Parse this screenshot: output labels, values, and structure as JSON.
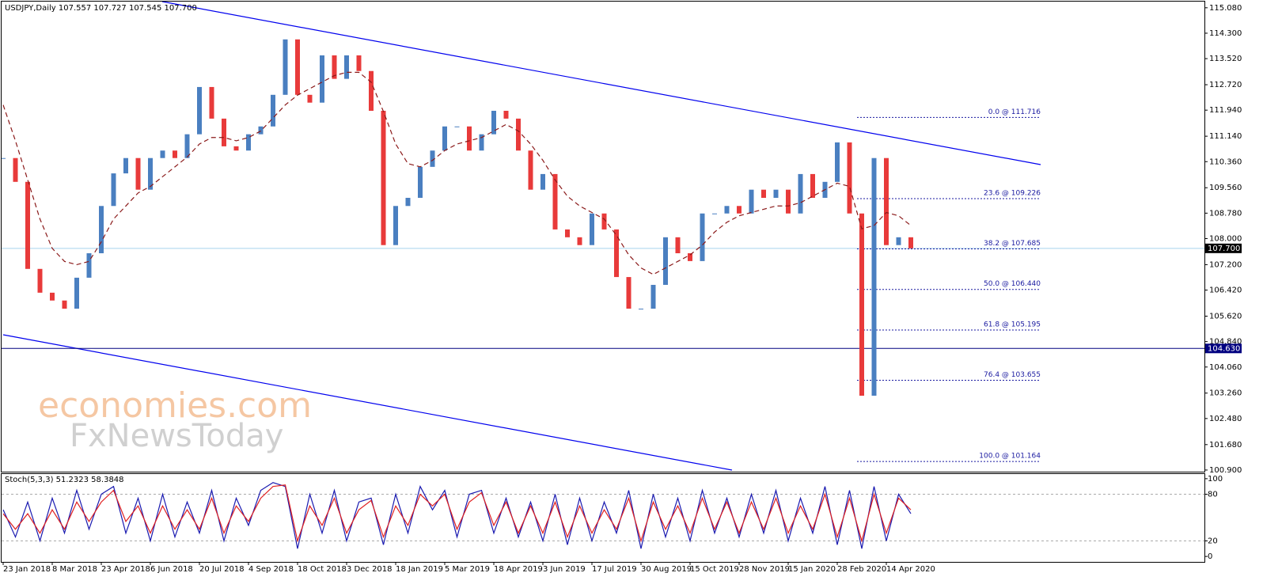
{
  "chart_data": [
    {
      "type": "line",
      "title": "USDJPY,Daily  107.557 107.727 107.545 107.700",
      "categories": [
        "23 Jan 2018",
        null,
        null,
        null,
        "8 Mar 2018",
        null,
        null,
        null,
        "23 Apr 2018",
        null,
        null,
        null,
        "6 Jun 2018",
        null,
        null,
        null,
        "20 Jul 2018",
        null,
        null,
        null,
        "4 Sep 2018",
        null,
        null,
        null,
        "18 Oct 2018",
        null,
        null,
        null,
        "3 Dec 2018",
        null,
        null,
        null,
        "18 Jan 2019",
        null,
        null,
        null,
        "5 Mar 2019",
        null,
        null,
        null,
        "18 Apr 2019",
        null,
        null,
        null,
        "3 Jun 2019",
        null,
        null,
        null,
        "17 Jul 2019",
        null,
        null,
        null,
        "30 Aug 2019",
        null,
        null,
        null,
        "15 Oct 2019",
        null,
        null,
        null,
        "28 Nov 2019",
        null,
        null,
        null,
        "15 Jan 2020",
        null,
        null,
        null,
        "28 Feb 2020",
        null,
        null,
        null,
        "14 Apr 2020",
        null,
        null
      ],
      "series": [
        {
          "style": "candle",
          "up_color": "#4a7fc0",
          "down_color": "#e83a3a",
          "values": [
            110.47,
            109.74,
            107.07,
            106.34,
            106.1,
            105.85,
            106.8,
            107.55,
            109.0,
            110.0,
            110.47,
            109.5,
            110.47,
            110.7,
            110.47,
            111.2,
            112.65,
            111.68,
            110.83,
            110.7,
            111.2,
            111.44,
            112.41,
            114.11,
            112.41,
            112.17,
            113.62,
            112.9,
            113.62,
            113.14,
            111.92,
            107.8,
            109.0,
            109.25,
            110.2,
            110.7,
            111.44,
            111.44,
            110.7,
            111.2,
            111.92,
            111.68,
            110.7,
            109.5,
            109.98,
            108.28,
            108.04,
            107.8,
            108.77,
            108.28,
            106.82,
            105.85,
            105.85,
            106.58,
            108.04,
            107.55,
            107.31,
            108.77,
            108.77,
            109.0,
            108.77,
            109.5,
            109.25,
            109.5,
            108.77,
            109.98,
            109.25,
            109.74,
            110.95,
            108.77,
            103.18,
            110.47,
            107.8,
            108.04,
            107.7
          ]
        },
        {
          "style": "dashed",
          "color": "#8b1a1a",
          "values": [
            112.1,
            111.0,
            109.8,
            108.6,
            107.7,
            107.3,
            107.2,
            107.3,
            107.9,
            108.6,
            109.0,
            109.4,
            109.6,
            109.9,
            110.2,
            110.5,
            110.9,
            111.1,
            111.1,
            111.0,
            111.1,
            111.3,
            111.7,
            112.1,
            112.4,
            112.6,
            112.8,
            113.0,
            113.1,
            113.1,
            112.8,
            111.9,
            110.9,
            110.3,
            110.2,
            110.4,
            110.7,
            110.9,
            111.0,
            111.1,
            111.3,
            111.5,
            111.3,
            110.9,
            110.4,
            109.8,
            109.3,
            109.0,
            108.8,
            108.6,
            108.1,
            107.5,
            107.1,
            106.9,
            107.1,
            107.3,
            107.5,
            107.8,
            108.2,
            108.5,
            108.7,
            108.8,
            108.9,
            109.0,
            109.0,
            109.1,
            109.3,
            109.5,
            109.7,
            109.6,
            108.3,
            108.4,
            108.8,
            108.7,
            108.4
          ]
        }
      ],
      "ylim": [
        100.85,
        115.27
      ],
      "yticks": [
        {
          "value": 115.08,
          "label": "115.080"
        },
        {
          "value": 114.3,
          "label": "114.300"
        },
        {
          "value": 113.52,
          "label": "113.520"
        },
        {
          "value": 112.72,
          "label": "112.720"
        },
        {
          "value": 111.94,
          "label": "111.940"
        },
        {
          "value": 111.14,
          "label": "111.140"
        },
        {
          "value": 110.36,
          "label": "110.360"
        },
        {
          "value": 109.56,
          "label": "109.560"
        },
        {
          "value": 108.78,
          "label": "108.780"
        },
        {
          "value": 108.0,
          "label": "108.000"
        },
        {
          "value": 107.2,
          "label": "107.200"
        },
        {
          "value": 106.42,
          "label": "106.420"
        },
        {
          "value": 105.62,
          "label": "105.620"
        },
        {
          "value": 104.84,
          "label": "104.840"
        },
        {
          "value": 104.06,
          "label": "104.060"
        },
        {
          "value": 103.26,
          "label": "103.260"
        },
        {
          "value": 102.48,
          "label": "102.480"
        },
        {
          "value": 101.68,
          "label": "101.680"
        },
        {
          "value": 100.9,
          "label": "100.900"
        }
      ],
      "hlines": [
        {
          "value": 107.7,
          "label": "107.700",
          "color": "#a8d4ee",
          "box": "#000000"
        },
        {
          "value": 104.63,
          "label": "104.630",
          "color": "#000080",
          "box": "#000080"
        }
      ],
      "fib_levels": [
        {
          "value": 111.716,
          "label": "0.0 @ 111.716"
        },
        {
          "value": 109.226,
          "label": "23.6 @ 109.226"
        },
        {
          "value": 107.685,
          "label": "38.2 @ 107.685"
        },
        {
          "value": 106.44,
          "label": "50.0 @ 106.440"
        },
        {
          "value": 105.195,
          "label": "61.8 @ 105.195"
        },
        {
          "value": 103.655,
          "label": "76.4 @ 103.655"
        },
        {
          "value": 101.164,
          "label": "100.0 @ 101.164"
        }
      ],
      "fib_color": "#1a1aa0",
      "watermark": [
        "economies.com",
        "FxNewsToday"
      ]
    },
    {
      "type": "line",
      "title": "Stoch(5,3,3) 51.2323 58.3848",
      "series": [
        {
          "color": "#1a1ab0",
          "values": [
            60,
            25,
            70,
            20,
            75,
            30,
            85,
            35,
            80,
            90,
            30,
            75,
            20,
            80,
            25,
            70,
            30,
            85,
            20,
            75,
            40,
            85,
            95,
            90,
            10,
            80,
            30,
            85,
            20,
            70,
            75,
            15,
            80,
            30,
            90,
            60,
            85,
            25,
            80,
            85,
            30,
            75,
            25,
            70,
            20,
            80,
            15,
            75,
            20,
            70,
            30,
            85,
            10,
            80,
            25,
            75,
            20,
            85,
            30,
            75,
            25,
            80,
            30,
            85,
            20,
            75,
            30,
            90,
            15,
            85,
            10,
            90,
            20,
            80,
            55
          ]
        },
        {
          "color": "#e02020",
          "values": [
            55,
            35,
            55,
            30,
            60,
            35,
            70,
            45,
            70,
            85,
            45,
            65,
            30,
            65,
            35,
            60,
            35,
            75,
            30,
            65,
            45,
            75,
            90,
            92,
            20,
            65,
            40,
            75,
            30,
            60,
            72,
            25,
            65,
            40,
            80,
            65,
            80,
            35,
            70,
            82,
            40,
            70,
            30,
            65,
            30,
            70,
            25,
            65,
            30,
            60,
            35,
            75,
            20,
            70,
            35,
            65,
            30,
            75,
            35,
            70,
            30,
            70,
            35,
            75,
            30,
            65,
            35,
            80,
            25,
            75,
            20,
            80,
            30,
            75,
            60
          ]
        }
      ],
      "ylim": [
        -7,
        107
      ],
      "yticks": [
        0,
        20,
        80,
        100
      ],
      "levels": [
        20,
        80
      ]
    }
  ]
}
